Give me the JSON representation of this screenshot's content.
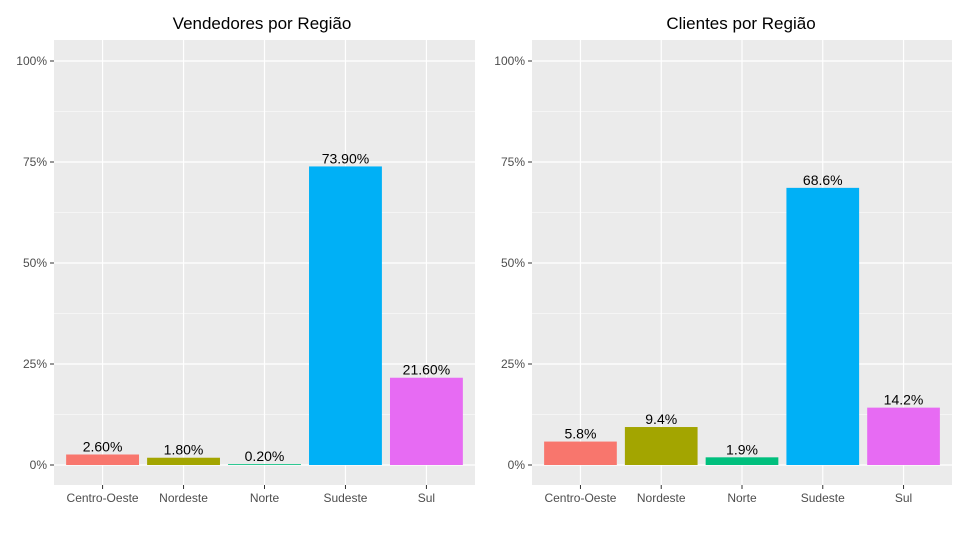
{
  "chart_data": [
    {
      "type": "bar",
      "title": "Vendedores por Região",
      "xlabel": "",
      "ylabel": "",
      "categories": [
        "Centro-Oeste",
        "Nordeste",
        "Norte",
        "Sudeste",
        "Sul"
      ],
      "values": [
        2.6,
        1.8,
        0.2,
        73.9,
        21.6
      ],
      "data_labels": [
        "2.60%",
        "1.80%",
        "0.20%",
        "73.90%",
        "21.60%"
      ],
      "colors": [
        "#F8766D",
        "#A3A500",
        "#00BF7D",
        "#00B0F6",
        "#E76BF3"
      ],
      "ylim": [
        0,
        100
      ],
      "yticks": [
        0,
        25,
        50,
        75,
        100
      ],
      "ytick_labels": [
        "0%",
        "25%",
        "50%",
        "75%",
        "100%"
      ],
      "grid": true,
      "legend": "none"
    },
    {
      "type": "bar",
      "title": "Clientes por Região",
      "xlabel": "",
      "ylabel": "",
      "categories": [
        "Centro-Oeste",
        "Nordeste",
        "Norte",
        "Sudeste",
        "Sul"
      ],
      "values": [
        5.8,
        9.4,
        1.9,
        68.6,
        14.2
      ],
      "data_labels": [
        "5.8%",
        "9.4%",
        "1.9%",
        "68.6%",
        "14.2%"
      ],
      "colors": [
        "#F8766D",
        "#A3A500",
        "#00BF7D",
        "#00B0F6",
        "#E76BF3"
      ],
      "ylim": [
        0,
        100
      ],
      "yticks": [
        0,
        25,
        50,
        75,
        100
      ],
      "ytick_labels": [
        "0%",
        "25%",
        "50%",
        "75%",
        "100%"
      ],
      "grid": true,
      "legend": "none"
    }
  ]
}
